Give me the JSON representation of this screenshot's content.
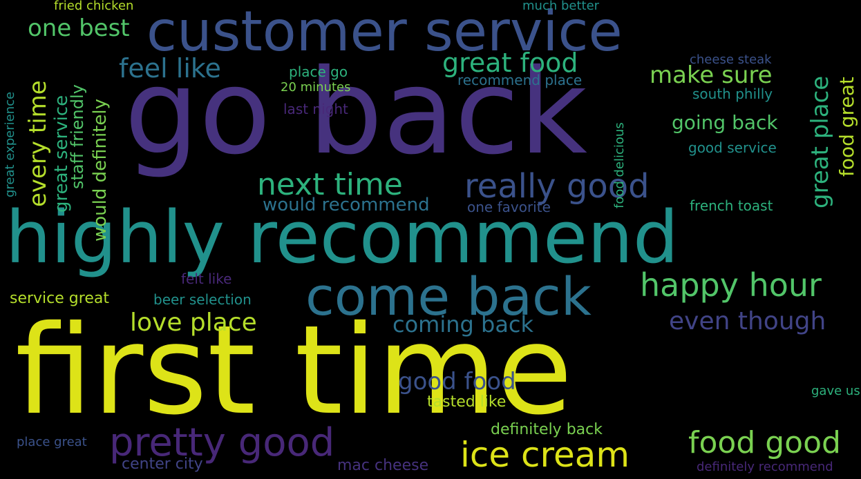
{
  "palette": {
    "background": "#000000",
    "yellow": "#dde318",
    "yellow_green": "#b5de2b",
    "light_green": "#7ad151",
    "green": "#52c569",
    "teal": "#2db27d",
    "teal_blue": "#21918c",
    "blue": "#3b528b",
    "slate": "#2c728e",
    "indigo": "#414487",
    "purple": "#482878",
    "dark_purple": "#46327e"
  },
  "words": {
    "first_time": "first time",
    "go_back": "go back",
    "highly_recommend": "highly recommend",
    "customer_service": "customer service",
    "come_back": "come back",
    "pretty_good": "pretty good",
    "ice_cream": "ice cream",
    "next_time": "next time",
    "really_good": "really good",
    "happy_hour": "happy hour",
    "food_good": "food good",
    "great_food": "great food",
    "feel_like": "feel like",
    "one_best": "one best",
    "love_place": "love place",
    "even_though": "even though",
    "good_food": "good food",
    "make_sure": "make sure",
    "great_place": "great place",
    "coming_back": "coming back",
    "every_time": "every time",
    "going_back": "going back",
    "would_recommend": "would recommend",
    "great_service": "great service",
    "food_great": "food great",
    "staff_friendly": "staff friendly",
    "would_definitely": "would definitely",
    "service_great": "service great",
    "definitely_back": "definitely back",
    "tasted_like": "tasted like",
    "center_city": "center city",
    "mac_cheese": "mac cheese",
    "beer_selection": "beer selection",
    "place_go": "place go",
    "recommend_place": "recommend place",
    "last_night": "last night",
    "south_philly": "south philly",
    "good_service": "good service",
    "french_toast": "french toast",
    "one_favorite": "one favorite",
    "felt_like": "felt like",
    "place_great": "place great",
    "definitely_recommend": "definitely recommend",
    "cheese_steak": "cheese steak",
    "fried_chicken": "fried chicken",
    "much_better": "much better",
    "twenty_minutes": "20 minutes",
    "great_experience": "great experience",
    "food_delicious": "food delicious",
    "gave_us": "gave us"
  }
}
